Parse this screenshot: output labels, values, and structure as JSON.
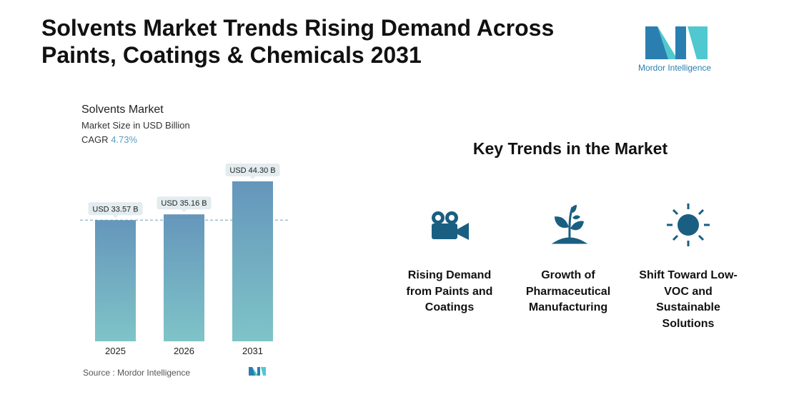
{
  "title": "Solvents Market Trends Rising Demand Across Paints, Coatings & Chemicals 2031",
  "logo": {
    "text": "Mordor Intelligence"
  },
  "chart_data": {
    "type": "bar",
    "title": "Solvents Market",
    "subtitle": "Market Size in USD Billion",
    "cagr_label": "CAGR",
    "cagr_value": "4.73%",
    "categories": [
      "2025",
      "2026",
      "2031"
    ],
    "values": [
      33.57,
      35.16,
      44.3
    ],
    "data_labels": [
      "USD 33.57 B",
      "USD 35.16 B",
      "USD 44.30 B"
    ],
    "ylim": [
      0,
      44.3
    ],
    "reference_line": 33.57,
    "colors": {
      "bar_top": "#6596bb",
      "bar_bottom": "#7fc4c8",
      "accent": "#5b9cc4"
    }
  },
  "source": "Source :  Mordor Intelligence",
  "key_trends": {
    "heading": "Key Trends in the Market",
    "items": [
      {
        "icon": "film-camera-icon",
        "label": "Rising Demand from Paints and Coatings"
      },
      {
        "icon": "plant-sprout-icon",
        "label": "Growth of Pharmaceutical Manufacturing"
      },
      {
        "icon": "sun-icon",
        "label": "Shift Toward Low-VOC and Sustainable Solutions"
      }
    ],
    "icon_color": "#1a5f82"
  }
}
